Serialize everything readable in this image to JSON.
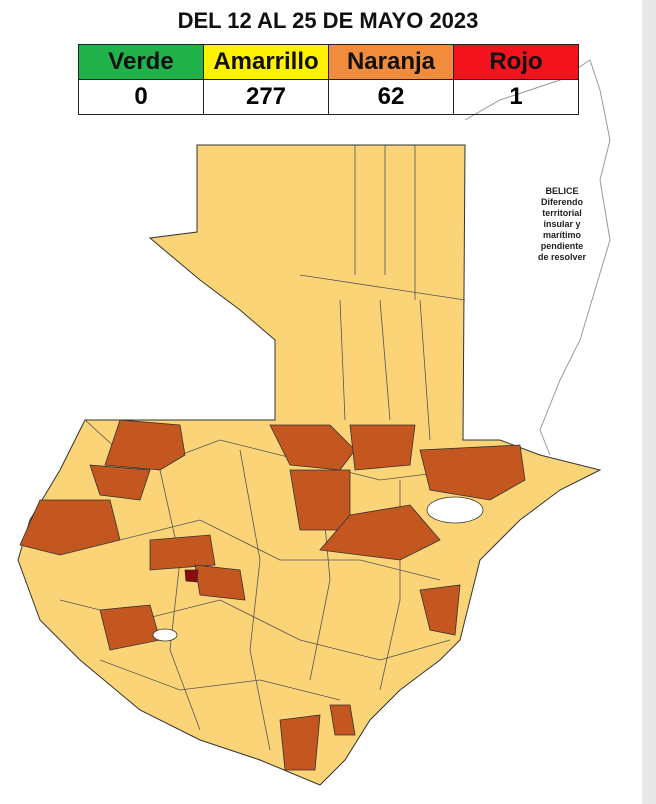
{
  "header": {
    "title": "DEL 12 AL 25 DE MAYO 2023"
  },
  "table": {
    "headers": [
      "Verde",
      "Amarrillo",
      "Naranja",
      "Rojo"
    ],
    "values": [
      0,
      277,
      62,
      1
    ]
  },
  "annotation": {
    "lines": [
      "BELICE",
      "Diferendo",
      "territorial",
      "insular y",
      "marítimo",
      "pendiente",
      "de resolver"
    ]
  }
}
